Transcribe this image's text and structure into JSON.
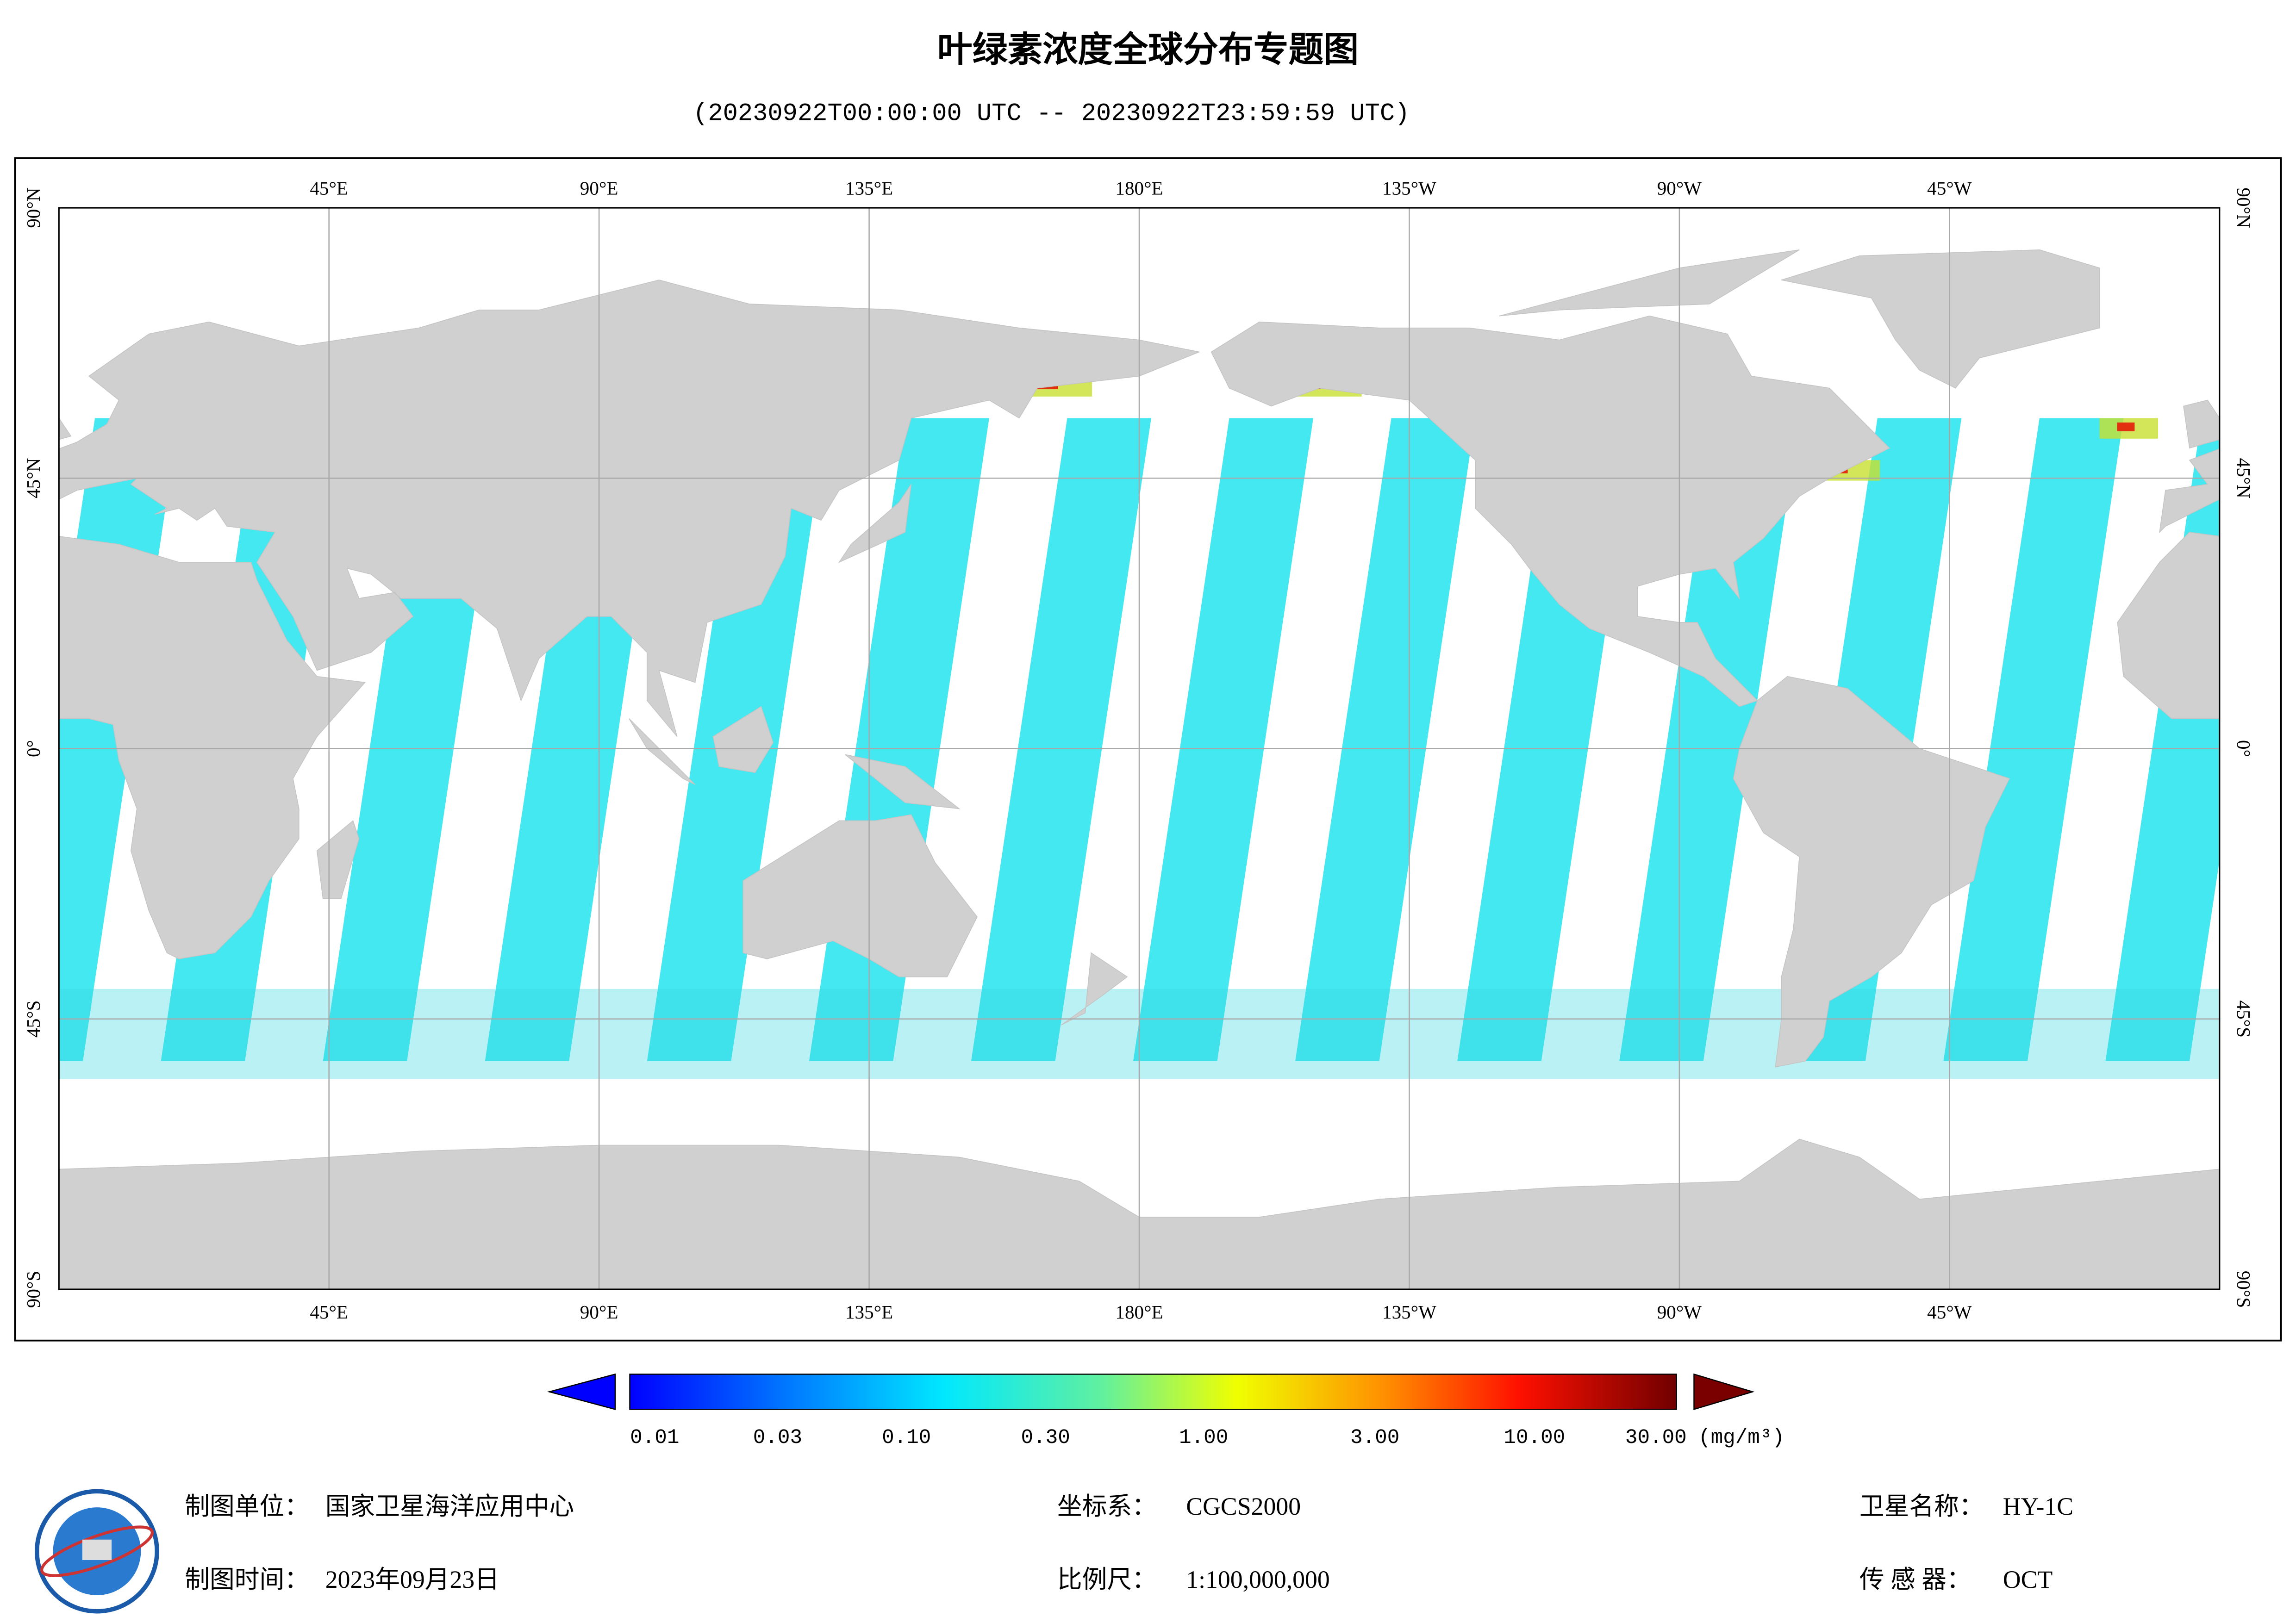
{
  "title": "叶绿素浓度全球分布专题图",
  "subtitle": "(20230922T00:00:00 UTC -- 20230922T23:59:59 UTC)",
  "map": {
    "lon_labels": [
      "45°E",
      "90°E",
      "135°E",
      "180°E",
      "135°W",
      "90°W",
      "45°W"
    ],
    "lat_labels": [
      "90°N",
      "45°N",
      "0°",
      "45°S",
      "90°S"
    ]
  },
  "colorbar": {
    "labels": [
      "0.01",
      "0.03",
      "0.10",
      "0.30",
      "1.00",
      "3.00",
      "10.00",
      "30.00"
    ],
    "unit": "(mg/m³)"
  },
  "info": {
    "unit_label": "制图单位：",
    "unit_value": "国家卫星海洋应用中心",
    "date_label": "制图时间：",
    "date_value": "2023年09月23日",
    "crs_label": "坐标系：",
    "crs_value": "CGCS2000",
    "scale_label": "比例尺：",
    "scale_value": "1:100,000,000",
    "satellite_label": "卫星名称：",
    "satellite_value": "HY-1C",
    "sensor_label": "传 感 器：",
    "sensor_value": "OCT"
  }
}
